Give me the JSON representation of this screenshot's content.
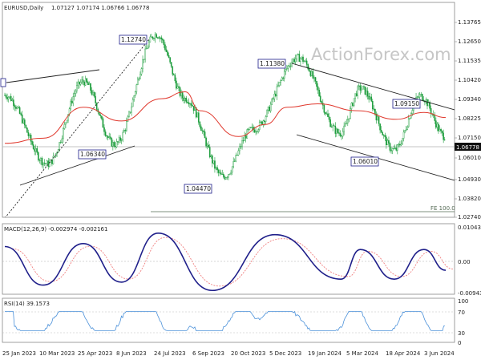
{
  "header": {
    "symbol": "EURUSD,Daily",
    "quote": "1.07127 1.07174 1.06766 1.06778"
  },
  "watermark": "ActionForex.com",
  "price_axis": {
    "ticks": [
      "1.13765",
      "1.12650",
      "1.11535",
      "1.10420",
      "1.09340",
      "1.08225",
      "1.07150",
      "1.06010",
      "1.04930",
      "1.03820",
      "1.02740"
    ],
    "current": "1.06778"
  },
  "annotations": {
    "peak_jul_2023": "1.12740",
    "peak_dec_2023": "1.11380",
    "low_apr_2023": "1.06340",
    "low_oct_2023": "1.04470",
    "peak_may_2024": "1.09150",
    "low_apr_2024": "1.06010",
    "fe_level": "FE 100.0"
  },
  "macd": {
    "label": "MACD(12,26,9) -0.002974 -0.002161",
    "ticks": [
      "0.010434",
      "0.00",
      "-0.009436"
    ]
  },
  "rsi": {
    "label": "RSI(14) 39.1573",
    "ticks": [
      "100",
      "70",
      "30",
      "0"
    ]
  },
  "date_axis": [
    "25 Jan 2023",
    "10 Mar 2023",
    "25 Apr 2023",
    "8 Jun 2023",
    "24 Jul 2023",
    "6 Sep 2023",
    "20 Oct 2023",
    "5 Dec 2023",
    "19 Jan 2024",
    "5 Mar 2024",
    "18 Apr 2024",
    "3 Jun 2024"
  ],
  "colors": {
    "candle": "#1a9c3a",
    "ma": "#e0392e",
    "macd": "#1f1f8a",
    "signal": "#f08080",
    "rsi": "#4a90d9",
    "trend": "#222222",
    "label_border": "#1f1f8a"
  },
  "chart_data": {
    "type": "candlestick",
    "symbol": "EURUSD",
    "timeframe": "Daily",
    "last_bar": {
      "open": 1.07127,
      "high": 1.07174,
      "low": 1.06766,
      "close": 1.06778
    },
    "ylim": [
      1.021,
      1.146
    ],
    "swing_points": [
      {
        "date": "2023-01-25",
        "price": 1.092
      },
      {
        "date": "2023-03-15",
        "price": 1.052
      },
      {
        "date": "2023-04-25",
        "price": 1.1
      },
      {
        "date": "2023-05-31",
        "price": 1.0634
      },
      {
        "date": "2023-07-18",
        "price": 1.1274
      },
      {
        "date": "2023-08-20",
        "price": 1.09
      },
      {
        "date": "2023-10-03",
        "price": 1.0447
      },
      {
        "date": "2023-11-05",
        "price": 1.072
      },
      {
        "date": "2023-12-28",
        "price": 1.1138
      },
      {
        "date": "2024-02-14",
        "price": 1.07
      },
      {
        "date": "2024-03-08",
        "price": 1.096
      },
      {
        "date": "2024-04-16",
        "price": 1.0601
      },
      {
        "date": "2024-05-16",
        "price": 1.0915
      },
      {
        "date": "2024-06-14",
        "price": 1.0678
      }
    ],
    "moving_average": [
      {
        "date": "2023-01-25",
        "value": 1.064
      },
      {
        "date": "2023-03-10",
        "value": 1.067
      },
      {
        "date": "2023-04-25",
        "value": 1.085
      },
      {
        "date": "2023-06-08",
        "value": 1.077
      },
      {
        "date": "2023-07-24",
        "value": 1.09
      },
      {
        "date": "2023-08-20",
        "value": 1.094
      },
      {
        "date": "2023-09-06",
        "value": 1.083
      },
      {
        "date": "2023-10-20",
        "value": 1.068
      },
      {
        "date": "2023-11-20",
        "value": 1.075
      },
      {
        "date": "2023-12-15",
        "value": 1.085
      },
      {
        "date": "2024-01-19",
        "value": 1.087
      },
      {
        "date": "2024-03-05",
        "value": 1.083
      },
      {
        "date": "2024-04-18",
        "value": 1.078
      },
      {
        "date": "2024-05-20",
        "value": 1.082
      },
      {
        "date": "2024-06-14",
        "value": 1.079
      }
    ],
    "macd_series": [
      {
        "date": "2023-01-25",
        "macd": 0.005
      },
      {
        "date": "2023-03-10",
        "macd": -0.008
      },
      {
        "date": "2023-04-25",
        "macd": 0.006
      },
      {
        "date": "2023-06-08",
        "macd": -0.007
      },
      {
        "date": "2023-07-20",
        "macd": 0.0095
      },
      {
        "date": "2023-09-20",
        "macd": -0.0098
      },
      {
        "date": "2023-12-01",
        "macd": 0.009
      },
      {
        "date": "2024-02-15",
        "macd": -0.006
      },
      {
        "date": "2024-03-08",
        "macd": 0.004
      },
      {
        "date": "2024-04-16",
        "macd": -0.006
      },
      {
        "date": "2024-05-20",
        "macd": 0.004
      },
      {
        "date": "2024-06-14",
        "macd": -0.003
      }
    ],
    "rsi_last": 39.1573
  }
}
